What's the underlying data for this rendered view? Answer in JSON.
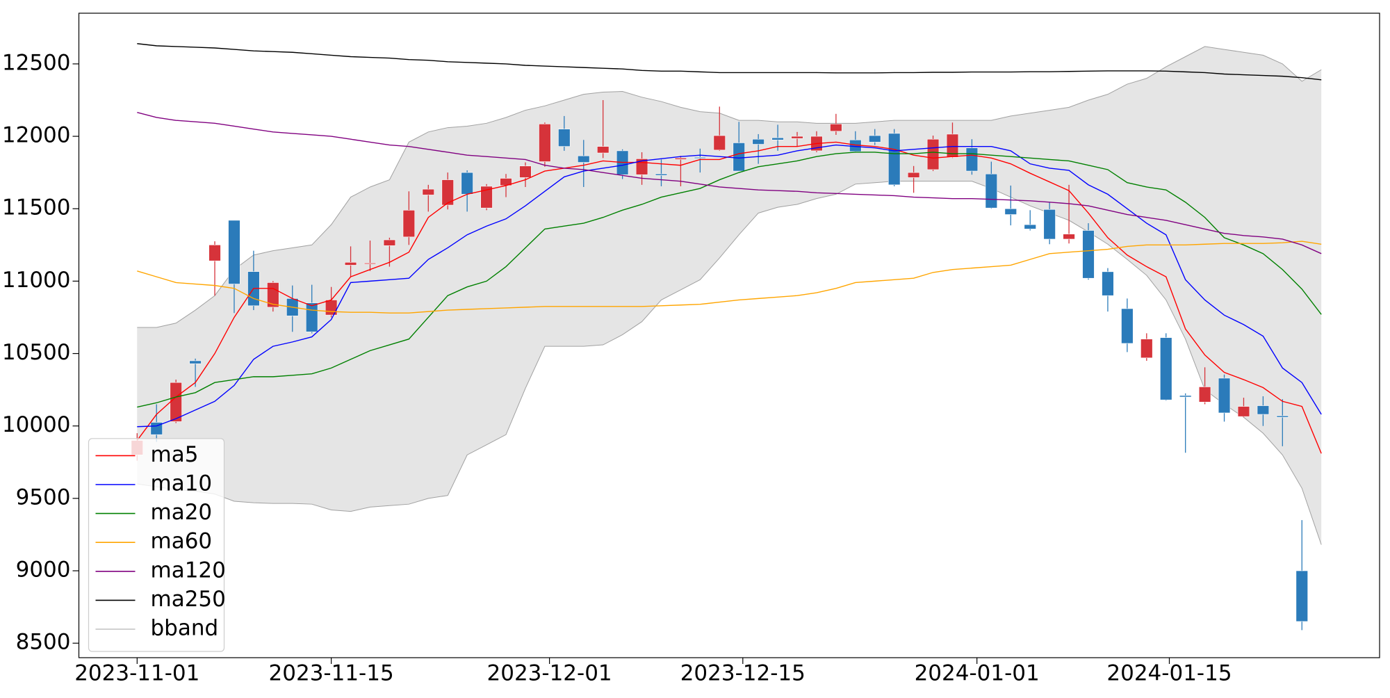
{
  "chart_data": {
    "type": "candlestick",
    "up_color": "#d6333a",
    "down_color": "#2b7bba",
    "open": [
      9800,
      10025,
      10030,
      10450,
      11140,
      11420,
      11066,
      10820,
      10880,
      10850,
      10766,
      11110,
      11120,
      11245,
      11305,
      11595,
      11525,
      11750,
      11505,
      11660,
      11715,
      11825,
      12050,
      11865,
      11885,
      11900,
      11735,
      11740,
      11840,
      11855,
      11905,
      11955,
      11980,
      11990,
      11985,
      11900,
      12035,
      11975,
      12005,
      12020,
      11715,
      11770,
      11855,
      11920,
      11740,
      11500,
      11390,
      11495,
      11290,
      11350,
      11065,
      10810,
      10470,
      10610,
      10210,
      10165,
      10330,
      10065,
      10140,
      10070,
      9000,
      null
    ],
    "high": [
      9950,
      10150,
      10320,
      10465,
      11275,
      11420,
      11210,
      11000,
      10970,
      10975,
      10960,
      11240,
      11280,
      11300,
      11620,
      11665,
      11750,
      11765,
      11670,
      11740,
      11820,
      12095,
      12140,
      11975,
      12250,
      11910,
      11890,
      11840,
      11865,
      11915,
      12205,
      12100,
      12015,
      12080,
      12030,
      12035,
      12155,
      12035,
      12050,
      12050,
      11795,
      12005,
      12095,
      11980,
      11825,
      11660,
      11490,
      11545,
      11665,
      11400,
      11090,
      10880,
      10640,
      10640,
      10225,
      10405,
      10355,
      10195,
      10205,
      10185,
      9350,
      null
    ],
    "low": [
      9760,
      9890,
      10020,
      10270,
      10900,
      10780,
      10800,
      10790,
      10650,
      10640,
      10750,
      11030,
      11070,
      11100,
      11250,
      11480,
      11495,
      11480,
      11490,
      11580,
      11650,
      11790,
      11900,
      11650,
      11850,
      11705,
      11665,
      11655,
      11655,
      11750,
      11900,
      11760,
      11810,
      11900,
      11930,
      11890,
      12010,
      11890,
      11940,
      11655,
      11610,
      11760,
      11850,
      11735,
      11500,
      11385,
      11350,
      11255,
      11260,
      11010,
      10790,
      10510,
      10450,
      10175,
      9815,
      10150,
      10030,
      10060,
      10000,
      9860,
      8590,
      null
    ],
    "close": [
      9900,
      9940,
      10300,
      10430,
      11250,
      10980,
      10830,
      10990,
      10760,
      10650,
      10870,
      11130,
      11125,
      11285,
      11490,
      11635,
      11700,
      11600,
      11655,
      11710,
      11795,
      12085,
      11930,
      11820,
      11930,
      11735,
      11845,
      11730,
      11850,
      11850,
      12005,
      11760,
      11945,
      11975,
      12000,
      12000,
      12085,
      11895,
      11960,
      11665,
      11750,
      11980,
      12015,
      11760,
      11505,
      11460,
      11360,
      11290,
      11325,
      11020,
      10900,
      10570,
      10600,
      10180,
      10200,
      10270,
      10090,
      10135,
      10080,
      10060,
      8650,
      null
    ],
    "series": [
      {
        "name": "ma5",
        "color": "#ff0000",
        "values": [
          9900,
          10080,
          10200,
          10300,
          10500,
          10750,
          10950,
          10950,
          10880,
          10830,
          10870,
          11030,
          11080,
          11130,
          11200,
          11440,
          11540,
          11600,
          11630,
          11660,
          11700,
          11760,
          11780,
          11800,
          11830,
          11820,
          11820,
          11810,
          11800,
          11840,
          11840,
          11880,
          11900,
          11930,
          11930,
          11950,
          11960,
          11940,
          11930,
          11910,
          11870,
          11850,
          11860,
          11870,
          11850,
          11810,
          11745,
          11685,
          11625,
          11470,
          11300,
          11180,
          11100,
          11030,
          10670,
          10490,
          10370,
          10320,
          10265,
          10170,
          10135,
          9810
        ]
      },
      {
        "name": "ma10",
        "color": "#0000ff",
        "values": [
          9995,
          10000,
          10050,
          10110,
          10170,
          10280,
          10460,
          10550,
          10580,
          10615,
          10735,
          10990,
          11000,
          11010,
          11020,
          11150,
          11230,
          11320,
          11380,
          11430,
          11520,
          11620,
          11720,
          11760,
          11780,
          11800,
          11830,
          11845,
          11860,
          11870,
          11860,
          11850,
          11860,
          11870,
          11900,
          11920,
          11940,
          11930,
          11920,
          11900,
          11910,
          11920,
          11930,
          11930,
          11930,
          11900,
          11810,
          11780,
          11765,
          11665,
          11600,
          11500,
          11400,
          11320,
          11010,
          10870,
          10765,
          10700,
          10620,
          10400,
          10300,
          10080
        ]
      },
      {
        "name": "ma20",
        "color": "#008000",
        "values": [
          10130,
          10160,
          10200,
          10230,
          10300,
          10320,
          10340,
          10340,
          10350,
          10360,
          10400,
          10460,
          10520,
          10560,
          10600,
          10750,
          10900,
          10960,
          11000,
          11100,
          11230,
          11360,
          11380,
          11400,
          11440,
          11490,
          11530,
          11580,
          11610,
          11640,
          11700,
          11750,
          11790,
          11810,
          11830,
          11860,
          11880,
          11890,
          11890,
          11880,
          11880,
          11890,
          11880,
          11880,
          11870,
          11860,
          11850,
          11840,
          11830,
          11800,
          11770,
          11680,
          11650,
          11630,
          11545,
          11440,
          11300,
          11250,
          11190,
          11080,
          10945,
          10770
        ]
      },
      {
        "name": "ma60",
        "color": "#ffa500",
        "values": [
          11070,
          11030,
          10990,
          10980,
          10970,
          10950,
          10880,
          10840,
          10820,
          10800,
          10790,
          10785,
          10785,
          10780,
          10780,
          10790,
          10800,
          10805,
          10810,
          10815,
          10820,
          10825,
          10825,
          10825,
          10825,
          10825,
          10825,
          10830,
          10835,
          10840,
          10855,
          10870,
          10880,
          10890,
          10900,
          10920,
          10950,
          10990,
          11000,
          11010,
          11020,
          11060,
          11080,
          11090,
          11100,
          11110,
          11150,
          11190,
          11200,
          11210,
          11220,
          11240,
          11250,
          11250,
          11250,
          11255,
          11260,
          11260,
          11260,
          11265,
          11275,
          11255
        ]
      },
      {
        "name": "ma120",
        "color": "#800080",
        "values": [
          12165,
          12130,
          12110,
          12100,
          12090,
          12070,
          12050,
          12030,
          12020,
          12010,
          12000,
          11980,
          11960,
          11940,
          11930,
          11910,
          11890,
          11870,
          11860,
          11850,
          11840,
          11800,
          11780,
          11770,
          11750,
          11730,
          11710,
          11700,
          11690,
          11670,
          11650,
          11640,
          11630,
          11625,
          11620,
          11610,
          11605,
          11600,
          11595,
          11590,
          11580,
          11575,
          11570,
          11570,
          11565,
          11560,
          11555,
          11545,
          11535,
          11520,
          11490,
          11460,
          11440,
          11420,
          11390,
          11360,
          11330,
          11315,
          11305,
          11290,
          11250,
          11190
        ]
      },
      {
        "name": "ma250",
        "color": "#000000",
        "values": [
          12640,
          12625,
          12620,
          12615,
          12610,
          12600,
          12590,
          12585,
          12580,
          12570,
          12560,
          12550,
          12545,
          12540,
          12530,
          12525,
          12515,
          12510,
          12505,
          12500,
          12490,
          12485,
          12480,
          12475,
          12470,
          12465,
          12455,
          12450,
          12450,
          12445,
          12440,
          12440,
          12440,
          12440,
          12440,
          12440,
          12438,
          12438,
          12438,
          12440,
          12440,
          12442,
          12442,
          12444,
          12444,
          12444,
          12446,
          12446,
          12448,
          12450,
          12452,
          12452,
          12452,
          12450,
          12445,
          12440,
          12430,
          12425,
          12420,
          12415,
          12405,
          12390
        ]
      }
    ],
    "band": {
      "name": "bband",
      "color": "#a0a0a0",
      "fill": "#e5e5e5",
      "upper": [
        10680,
        10680,
        10710,
        10800,
        10900,
        11080,
        11180,
        11210,
        11230,
        11250,
        11390,
        11580,
        11650,
        11700,
        11960,
        12030,
        12060,
        12070,
        12090,
        12130,
        12180,
        12210,
        12250,
        12290,
        12305,
        12310,
        12270,
        12240,
        12200,
        12170,
        12160,
        12110,
        12110,
        12100,
        12100,
        12090,
        12090,
        12090,
        12100,
        12110,
        12110,
        12110,
        12110,
        12110,
        12110,
        12140,
        12160,
        12180,
        12200,
        12250,
        12290,
        12360,
        12400,
        12480,
        12550,
        12620,
        12600,
        12580,
        12560,
        12500,
        12380,
        12460
      ],
      "lower": [
        9600,
        9580,
        9560,
        9550,
        9530,
        9480,
        9470,
        9465,
        9465,
        9460,
        9420,
        9410,
        9440,
        9450,
        9460,
        9500,
        9520,
        9800,
        9870,
        9940,
        10260,
        10550,
        10550,
        10550,
        10560,
        10630,
        10720,
        10870,
        10940,
        11010,
        11160,
        11320,
        11470,
        11510,
        11530,
        11570,
        11600,
        11670,
        11680,
        11690,
        11690,
        11690,
        11690,
        11690,
        11640,
        11580,
        11520,
        11470,
        11420,
        11340,
        11255,
        11150,
        11040,
        10870,
        10600,
        10250,
        10150,
        10060,
        9950,
        9800,
        9570,
        9180
      ]
    },
    "xlim": [
      -3,
      64
    ],
    "xticks": [
      {
        "value": 0,
        "label": "2023-11-01"
      },
      {
        "value": 10,
        "label": "2023-11-15"
      },
      {
        "value": 21.24,
        "label": "2023-12-01"
      },
      {
        "value": 31.2,
        "label": "2023-12-15"
      },
      {
        "value": 43.26,
        "label": "2024-01-01"
      },
      {
        "value": 53.17,
        "label": "2024-01-15"
      }
    ],
    "ylim": [
      8400,
      12850
    ],
    "yticks": [
      8500,
      9000,
      9500,
      10000,
      10500,
      11000,
      11500,
      12000,
      12500
    ],
    "legend": "lower left"
  }
}
